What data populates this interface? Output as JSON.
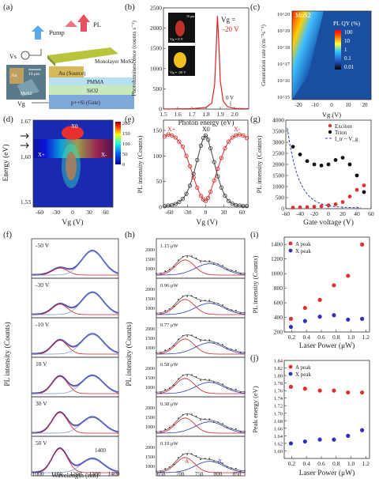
{
  "panels": {
    "a": {
      "label": "(a)",
      "pump": "Pump",
      "pl": "PL",
      "vg": "Vg",
      "vs": "Vs",
      "au": "Au (Source)",
      "monolayer": "Monolayer MoS2",
      "pmma": "PMMA",
      "sio2": "SiO2",
      "gate": "p++Si (Gate)",
      "scale": "10 μm",
      "mos2": "MoS2",
      "au_small": "Au"
    },
    "b": {
      "label": "(b)",
      "vg_text": "Vg =",
      "vg_val": "-20 V",
      "zero_v": "0 V",
      "inset_top": "Vg = 0 V",
      "inset_bot": "Vg = -20 V",
      "inset_scale": "10 μm"
    },
    "c": {
      "label": "(c)",
      "material": "MoS2",
      "cbar_title": "PL QY (%)"
    },
    "d": {
      "label": "(d)",
      "xplus": "X+",
      "x0": "X0",
      "xminus": "X-"
    },
    "e": {
      "label": "(e)",
      "xplus": "X+",
      "x0": "X0",
      "xminus": "X-"
    },
    "f": {
      "label": "(f)",
      "note": "1400"
    },
    "g": {
      "label": "(g)"
    },
    "h": {
      "label": "(h)",
      "peakA": "A",
      "peakX": "X"
    },
    "i": {
      "label": "(i)"
    },
    "j": {
      "label": "(j)"
    }
  },
  "chart_data": [
    {
      "panel": "b",
      "type": "line",
      "xlabel": "Photon energy (eV)",
      "ylabel": "Photoluminescence (counts s⁻¹)",
      "xlim": [
        1.5,
        2.1
      ],
      "ylim": [
        0,
        2500
      ],
      "xticks": [
        1.5,
        1.6,
        1.7,
        1.8,
        1.9,
        2.0
      ],
      "yticks": [
        0,
        500,
        1000,
        1500,
        2000,
        2500
      ],
      "x": [
        1.5,
        1.7,
        1.8,
        1.84,
        1.86,
        1.87,
        1.88,
        1.89,
        1.9,
        1.92,
        1.95,
        2.0,
        2.1
      ],
      "y": [
        0,
        10,
        40,
        150,
        600,
        1400,
        2300,
        1600,
        700,
        200,
        60,
        15,
        5
      ],
      "series_color": "#e02020"
    },
    {
      "panel": "c",
      "type": "heatmap",
      "xlabel": "Vg (V)",
      "ylabel": "Generation rate (cm⁻²s⁻¹)",
      "xticks": [
        -20,
        -10,
        0,
        10,
        20
      ],
      "yticks": [
        "10^20",
        "10^19",
        "10^18",
        "10^17",
        "10^16",
        "10^15"
      ],
      "colorbar_ticks": [
        "100",
        "10",
        "1",
        "0.1",
        "0.01"
      ]
    },
    {
      "panel": "d",
      "type": "heatmap",
      "xlabel": "Vg (V)",
      "ylabel": "Energy (eV)",
      "xticks": [
        -60,
        -30,
        0,
        30,
        60
      ],
      "yticks": [
        1.67,
        1.6,
        1.53
      ],
      "colorbar_ticks": [
        200,
        150,
        100,
        50,
        0
      ]
    },
    {
      "panel": "e",
      "type": "scatter",
      "xlabel": "Vg (V)",
      "ylabel": "PL intensity (Counts)",
      "xlim": [
        -70,
        70
      ],
      "ylim": [
        0,
        170
      ],
      "xticks": [
        -60,
        -30,
        0,
        30,
        60
      ],
      "yticks": [
        0,
        50,
        100,
        150
      ],
      "series": [
        {
          "color": "#e03030",
          "x": [
            -68,
            -62,
            -56,
            -50,
            -44,
            -38,
            -32,
            -26,
            -20,
            -14,
            -8,
            -4,
            0,
            4,
            8,
            14,
            20,
            26,
            32,
            38,
            44,
            50,
            56,
            62,
            68
          ],
          "y": [
            138,
            142,
            140,
            136,
            128,
            118,
            100,
            80,
            58,
            38,
            22,
            15,
            12,
            18,
            30,
            52,
            75,
            96,
            115,
            128,
            136,
            140,
            142,
            140,
            135
          ]
        },
        {
          "color": "#444444",
          "x": [
            -68,
            -62,
            -56,
            -50,
            -44,
            -38,
            -32,
            -26,
            -20,
            -14,
            -8,
            -4,
            0,
            4,
            8,
            14,
            20,
            26,
            32,
            38,
            44,
            50,
            56,
            62,
            68
          ],
          "y": [
            2,
            3,
            4,
            6,
            10,
            16,
            26,
            42,
            65,
            92,
            120,
            135,
            140,
            132,
            115,
            88,
            60,
            38,
            22,
            12,
            7,
            4,
            3,
            2,
            2
          ]
        }
      ]
    },
    {
      "panel": "g",
      "type": "scatter",
      "xlabel": "Gate voltage (V)",
      "ylabel": "PL intensity (Counts)",
      "xlim": [
        -60,
        60
      ],
      "ylim": [
        0,
        4000
      ],
      "xticks": [
        -60,
        -40,
        -20,
        0,
        20,
        40,
        60
      ],
      "yticks": [
        0,
        500,
        1000,
        1500,
        2000,
        2500,
        3000,
        3500,
        4000
      ],
      "legend": [
        "Exciton",
        "Trion",
        "I_tr ~ V_g"
      ],
      "series": [
        {
          "name": "Exciton",
          "color": "#e03030",
          "x": [
            -50,
            -40,
            -30,
            -20,
            -10,
            0,
            10,
            20,
            30,
            40,
            50
          ],
          "y": [
            50,
            60,
            70,
            90,
            110,
            150,
            200,
            300,
            550,
            850,
            1050
          ]
        },
        {
          "name": "Trion",
          "color": "#111111",
          "x": [
            -50,
            -40,
            -30,
            -20,
            -10,
            0,
            10,
            20,
            30,
            40,
            50
          ],
          "y": [
            2800,
            2450,
            2150,
            2000,
            1950,
            2000,
            2200,
            2300,
            2000,
            1500,
            750
          ]
        }
      ]
    },
    {
      "panel": "f",
      "type": "line",
      "xlabel": "Wavelength (nm)",
      "ylabel": "PL intensity (Counts)",
      "xticks": [
        1000,
        1100,
        1200,
        1300,
        1400
      ],
      "subplots": [
        "-50 V",
        "-30 V",
        "-10 V",
        "10 V",
        "30 V",
        "50 V"
      ]
    },
    {
      "panel": "h",
      "type": "line",
      "xlabel": "Wavelength (nm)",
      "ylabel": "PL intensity (Counts)",
      "xticks": [
        650,
        700,
        750,
        800,
        850
      ],
      "yticks": [
        1000,
        1500,
        2000
      ],
      "subplots": [
        "1.15 μW",
        "0.96 μW",
        "0.77 μW",
        "0.58 μW",
        "0.38 μW",
        "0.19 μW"
      ]
    },
    {
      "panel": "i",
      "type": "scatter",
      "xlabel": "Laser Power (μW)",
      "ylabel": "PL intensity (Counts)",
      "xlim": [
        0.1,
        1.25
      ],
      "ylim": [
        200,
        1500
      ],
      "xticks": [
        0.2,
        0.4,
        0.6,
        0.8,
        1.0,
        1.2
      ],
      "yticks": [
        200,
        400,
        600,
        800,
        1000,
        1200,
        1400
      ],
      "legend": [
        "A peak",
        "X peak"
      ],
      "series": [
        {
          "name": "A peak",
          "color": "#e03030",
          "x": [
            0.19,
            0.38,
            0.58,
            0.77,
            0.96,
            1.15
          ],
          "y": [
            380,
            530,
            640,
            840,
            970,
            1400
          ]
        },
        {
          "name": "X peak",
          "color": "#3030c0",
          "x": [
            0.19,
            0.38,
            0.58,
            0.77,
            0.96,
            1.15
          ],
          "y": [
            270,
            350,
            410,
            430,
            370,
            380
          ]
        }
      ]
    },
    {
      "panel": "j",
      "type": "scatter",
      "xlabel": "Laser Power (μW)",
      "ylabel": "Peak energy (eV)",
      "xlim": [
        0.1,
        1.25
      ],
      "ylim": [
        1.58,
        1.84
      ],
      "xticks": [
        0.2,
        0.4,
        0.6,
        0.8,
        1.0,
        1.2
      ],
      "yticks": [
        1.6,
        1.62,
        1.64,
        1.66,
        1.68,
        1.7,
        1.72,
        1.74,
        1.76,
        1.78,
        1.8,
        1.82,
        1.84
      ],
      "legend": [
        "A peak",
        "X peak"
      ],
      "series": [
        {
          "name": "A peak",
          "color": "#e03030",
          "x": [
            0.19,
            0.38,
            0.58,
            0.77,
            0.96,
            1.15
          ],
          "y": [
            1.77,
            1.765,
            1.76,
            1.76,
            1.755,
            1.755
          ]
        },
        {
          "name": "X peak",
          "color": "#3030c0",
          "x": [
            0.19,
            0.38,
            0.58,
            0.77,
            0.96,
            1.15
          ],
          "y": [
            1.62,
            1.625,
            1.63,
            1.63,
            1.64,
            1.655
          ]
        }
      ]
    }
  ]
}
